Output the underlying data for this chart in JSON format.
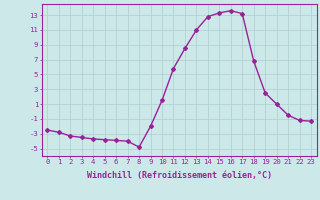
{
  "x": [
    0,
    1,
    2,
    3,
    4,
    5,
    6,
    7,
    8,
    9,
    10,
    11,
    12,
    13,
    14,
    15,
    16,
    17,
    18,
    19,
    20,
    21,
    22,
    23
  ],
  "y": [
    -2.5,
    -2.8,
    -3.3,
    -3.5,
    -3.7,
    -3.8,
    -3.9,
    -4.0,
    -4.8,
    -2.0,
    1.5,
    5.8,
    8.5,
    11.0,
    12.8,
    13.3,
    13.6,
    13.2,
    6.8,
    2.5,
    1.0,
    -0.5,
    -1.2,
    -1.3
  ],
  "line_color": "#992299",
  "marker": "D",
  "marker_size": 2.0,
  "bg_color": "#cce8e8",
  "grid_color": "#aacfcf",
  "xlabel": "Windchill (Refroidissement éolien,°C)",
  "xlabel_fontsize": 6.0,
  "tick_color": "#992299",
  "tick_label_color": "#992299",
  "ylim": [
    -6,
    14.5
  ],
  "yticks": [
    -5,
    -3,
    -1,
    1,
    3,
    5,
    7,
    9,
    11,
    13
  ],
  "xticks": [
    0,
    1,
    2,
    3,
    4,
    5,
    6,
    7,
    8,
    9,
    10,
    11,
    12,
    13,
    14,
    15,
    16,
    17,
    18,
    19,
    20,
    21,
    22,
    23
  ],
  "tick_fontsize": 5.2,
  "linewidth": 1.0
}
